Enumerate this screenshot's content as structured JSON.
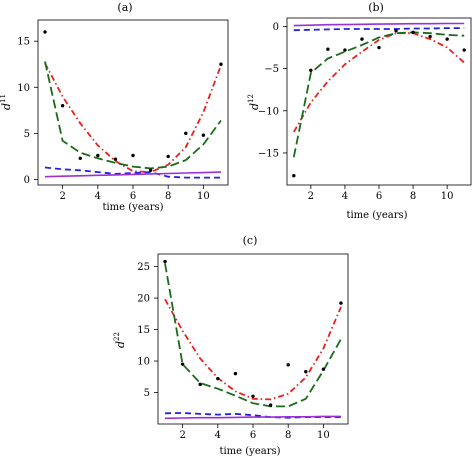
{
  "chart_data": [
    {
      "type": "line",
      "panel_label": "(a)",
      "title": "",
      "xlabel": "time (years)",
      "ylabel_base": "d",
      "ylabel_sup": "11",
      "xlim": [
        0.6,
        11.4
      ],
      "ylim": [
        -0.6,
        17.3
      ],
      "xticks": [
        2,
        4,
        6,
        8,
        10
      ],
      "yticks": [
        0,
        5,
        10,
        15
      ],
      "x": [
        1,
        2,
        3,
        4,
        5,
        6,
        7,
        8,
        9,
        10,
        11
      ],
      "points": [
        16.0,
        8.0,
        2.3,
        2.6,
        2.2,
        2.6,
        1.0,
        2.5,
        5.0,
        4.8,
        12.5
      ],
      "series": [
        {
          "style": "dotdash",
          "color": "#e8211f",
          "values": [
            12.6,
            9.0,
            6.1,
            3.7,
            2.0,
            0.9,
            0.8,
            1.6,
            3.5,
            7.3,
            12.4
          ]
        },
        {
          "style": "longdash",
          "color": "#1a6b1a",
          "values": [
            12.8,
            4.2,
            2.9,
            2.3,
            1.8,
            1.4,
            1.2,
            1.4,
            2.1,
            3.8,
            6.4
          ]
        },
        {
          "style": "dashed",
          "color": "#2222dd",
          "values": [
            1.3,
            1.1,
            1.0,
            0.8,
            0.6,
            0.7,
            0.8,
            0.3,
            0.2,
            0.2,
            0.2
          ]
        },
        {
          "style": "solid",
          "color": "#9b30d9",
          "values": [
            0.3,
            0.35,
            0.4,
            0.45,
            0.5,
            0.55,
            0.6,
            0.65,
            0.7,
            0.75,
            0.8
          ]
        }
      ]
    },
    {
      "type": "line",
      "panel_label": "(b)",
      "title": "",
      "xlabel": "time (years)",
      "ylabel_base": "d",
      "ylabel_sup": "12",
      "xlim": [
        0.6,
        11.4
      ],
      "ylim": [
        -18.8,
        1.0
      ],
      "xticks": [
        2,
        4,
        6,
        8,
        10
      ],
      "yticks": [
        0,
        -5,
        -10,
        -15
      ],
      "x": [
        1,
        2,
        3,
        4,
        5,
        6,
        7,
        8,
        9,
        10,
        11
      ],
      "points": [
        -17.7,
        -5.2,
        -2.7,
        -2.8,
        -1.5,
        -2.5,
        -0.5,
        -0.7,
        -1.2,
        -1.5,
        -2.8
      ],
      "series": [
        {
          "style": "dotdash",
          "color": "#e8211f",
          "values": [
            -12.5,
            -9.0,
            -6.5,
            -4.5,
            -3.0,
            -1.6,
            -0.8,
            -0.8,
            -1.5,
            -2.5,
            -4.3
          ]
        },
        {
          "style": "longdash",
          "color": "#1a6b1a",
          "values": [
            -15.5,
            -5.5,
            -3.8,
            -3.0,
            -2.2,
            -1.3,
            -0.8,
            -0.7,
            -0.8,
            -1.0,
            -1.1
          ]
        },
        {
          "style": "dashed",
          "color": "#2222dd",
          "values": [
            -0.45,
            -0.4,
            -0.35,
            -0.3,
            -0.3,
            -0.3,
            -0.3,
            -0.25,
            -0.25,
            -0.2,
            -0.2
          ]
        },
        {
          "style": "solid",
          "color": "#9b30d9",
          "values": [
            0.1,
            0.15,
            0.2,
            0.22,
            0.25,
            0.28,
            0.3,
            0.32,
            0.33,
            0.35,
            0.35
          ]
        }
      ]
    },
    {
      "type": "line",
      "panel_label": "(c)",
      "title": "",
      "xlabel": "time (years)",
      "ylabel_base": "d",
      "ylabel_sup": "22",
      "xlim": [
        0.6,
        11.4
      ],
      "ylim": [
        0.0,
        27.0
      ],
      "xticks": [
        2,
        4,
        6,
        8,
        10
      ],
      "yticks": [
        5,
        10,
        15,
        20,
        25
      ],
      "x": [
        1,
        2,
        3,
        4,
        5,
        6,
        7,
        8,
        9,
        10,
        11
      ],
      "points": [
        25.8,
        9.5,
        6.3,
        7.2,
        8.0,
        4.4,
        3.0,
        9.4,
        8.3,
        8.7,
        19.2
      ],
      "series": [
        {
          "style": "dotdash",
          "color": "#e8211f",
          "values": [
            19.8,
            14.8,
            10.4,
            7.3,
            5.2,
            4.0,
            3.9,
            4.8,
            7.4,
            12.0,
            18.6
          ]
        },
        {
          "style": "longdash",
          "color": "#1a6b1a",
          "values": [
            25.5,
            9.5,
            6.5,
            5.6,
            4.5,
            3.3,
            2.8,
            2.8,
            4.0,
            8.5,
            13.5
          ]
        },
        {
          "style": "dashed",
          "color": "#2222dd",
          "values": [
            1.7,
            1.75,
            1.6,
            1.5,
            1.6,
            1.4,
            1.1,
            1.0,
            1.1,
            1.1,
            1.1
          ]
        },
        {
          "style": "solid",
          "color": "#9b30d9",
          "values": [
            0.9,
            0.95,
            1.0,
            1.0,
            1.05,
            1.1,
            1.1,
            1.15,
            1.15,
            1.2,
            1.2
          ]
        }
      ]
    }
  ]
}
